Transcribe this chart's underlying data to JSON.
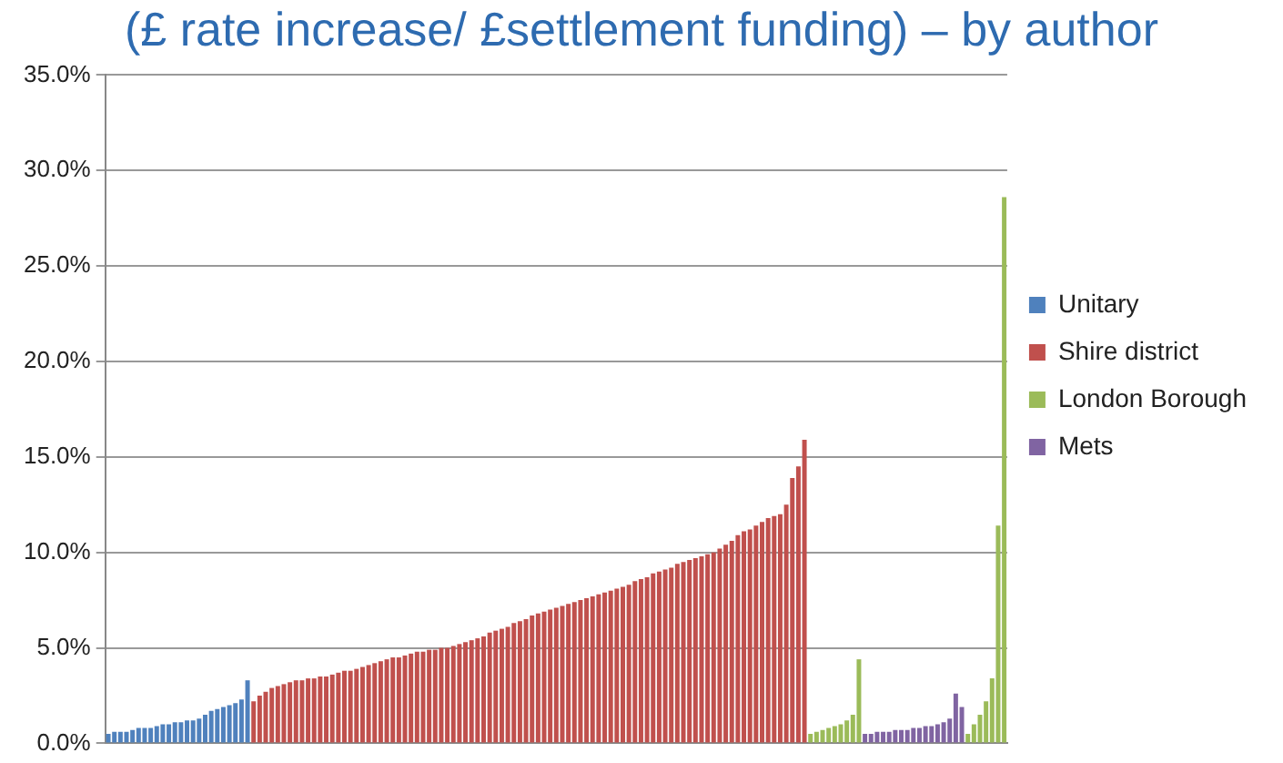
{
  "chart_data": {
    "type": "bar",
    "title": "(£ rate increase/ £settlement funding) – by author",
    "categories": [
      null,
      null,
      null,
      null,
      null,
      null,
      null,
      null,
      null,
      null,
      null,
      null,
      null,
      null,
      null,
      null,
      null,
      null,
      null,
      null,
      null,
      null,
      null,
      null,
      null,
      null,
      null,
      null,
      null,
      null,
      null,
      null,
      null,
      null,
      null,
      null,
      null,
      null,
      null,
      null,
      null,
      null,
      null,
      null,
      null,
      null,
      null,
      null,
      null,
      null,
      null,
      null,
      null,
      null,
      null,
      null,
      null,
      null,
      null,
      null,
      null,
      null,
      null,
      null,
      null,
      null,
      null,
      null,
      null,
      null,
      null,
      null,
      null,
      null,
      null,
      null,
      null,
      null,
      null,
      null,
      null,
      null,
      null,
      null,
      null,
      null,
      null,
      null,
      null,
      null,
      null,
      null,
      null,
      null,
      null,
      null,
      null,
      null,
      null,
      null,
      null,
      null,
      null,
      null,
      null,
      null,
      null,
      null,
      null,
      null,
      null,
      null,
      null,
      null,
      null,
      null,
      null,
      null,
      null,
      null,
      null,
      null,
      null,
      null,
      null,
      null,
      null,
      null,
      null,
      null,
      null,
      null,
      null,
      null,
      null,
      null,
      null,
      null,
      null,
      null,
      null,
      null,
      null,
      null,
      null,
      null,
      null,
      null,
      null
    ],
    "series": [
      {
        "name": "Unitary",
        "color": "#4f81bd",
        "values": [
          0.5,
          0.6,
          0.6,
          0.6,
          0.7,
          0.8,
          0.8,
          0.8,
          0.9,
          1.0,
          1.0,
          1.1,
          1.1,
          1.2,
          1.2,
          1.3,
          1.5,
          1.7,
          1.8,
          1.9,
          2.0,
          2.1,
          2.3,
          3.3,
          null,
          null,
          null,
          null,
          null,
          null,
          null,
          null,
          null,
          null,
          null,
          null,
          null,
          null,
          null,
          null,
          null,
          null,
          null,
          null,
          null,
          null,
          null,
          null,
          null,
          null,
          null,
          null,
          null,
          null,
          null,
          null,
          null,
          null,
          null,
          null,
          null,
          null,
          null,
          null,
          null,
          null,
          null,
          null,
          null,
          null,
          null,
          null,
          null,
          null,
          null,
          null,
          null,
          null,
          null,
          null,
          null,
          null,
          null,
          null,
          null,
          null,
          null,
          null,
          null,
          null,
          null,
          null,
          null,
          null,
          null,
          null,
          null,
          null,
          null,
          null,
          null,
          null,
          null,
          null,
          null,
          null,
          null,
          null,
          null,
          null,
          null,
          null,
          null,
          null,
          null,
          null,
          null,
          null,
          null,
          null,
          null,
          null,
          null,
          null,
          null,
          null,
          null,
          null,
          null,
          null,
          null,
          null,
          null,
          null,
          null,
          null,
          null,
          null,
          null,
          null,
          null,
          null,
          null,
          null,
          null,
          null,
          null,
          null,
          null
        ]
      },
      {
        "name": "Shire district",
        "color": "#c0504d",
        "values": [
          null,
          null,
          null,
          null,
          null,
          null,
          null,
          null,
          null,
          null,
          null,
          null,
          null,
          null,
          null,
          null,
          null,
          null,
          null,
          null,
          null,
          null,
          null,
          null,
          2.2,
          2.5,
          2.7,
          2.9,
          3.0,
          3.1,
          3.2,
          3.3,
          3.3,
          3.4,
          3.4,
          3.5,
          3.5,
          3.6,
          3.7,
          3.8,
          3.8,
          3.9,
          4.0,
          4.1,
          4.2,
          4.3,
          4.4,
          4.5,
          4.5,
          4.6,
          4.7,
          4.8,
          4.8,
          4.9,
          4.9,
          5.0,
          5.0,
          5.1,
          5.2,
          5.3,
          5.4,
          5.5,
          5.6,
          5.8,
          5.9,
          6.0,
          6.1,
          6.3,
          6.4,
          6.5,
          6.7,
          6.8,
          6.9,
          7.0,
          7.1,
          7.2,
          7.3,
          7.4,
          7.5,
          7.6,
          7.7,
          7.8,
          7.9,
          8.0,
          8.1,
          8.2,
          8.3,
          8.5,
          8.6,
          8.7,
          8.9,
          9.0,
          9.1,
          9.2,
          9.4,
          9.5,
          9.6,
          9.7,
          9.8,
          9.9,
          10.0,
          10.2,
          10.4,
          10.6,
          10.9,
          11.1,
          11.2,
          11.4,
          11.6,
          11.8,
          11.9,
          12.0,
          12.5,
          13.9,
          14.5,
          15.9,
          null,
          null,
          null,
          null,
          null,
          null,
          null,
          null,
          null,
          null,
          null,
          null,
          null,
          null,
          null,
          null,
          null,
          null,
          null,
          null,
          null,
          null,
          null,
          null,
          null,
          null,
          null,
          null,
          null,
          null,
          null,
          null,
          null
        ]
      },
      {
        "name": "London Borough",
        "color": "#9bbb59",
        "values": [
          null,
          null,
          null,
          null,
          null,
          null,
          null,
          null,
          null,
          null,
          null,
          null,
          null,
          null,
          null,
          null,
          null,
          null,
          null,
          null,
          null,
          null,
          null,
          null,
          null,
          null,
          null,
          null,
          null,
          null,
          null,
          null,
          null,
          null,
          null,
          null,
          null,
          null,
          null,
          null,
          null,
          null,
          null,
          null,
          null,
          null,
          null,
          null,
          null,
          null,
          null,
          null,
          null,
          null,
          null,
          null,
          null,
          null,
          null,
          null,
          null,
          null,
          null,
          null,
          null,
          null,
          null,
          null,
          null,
          null,
          null,
          null,
          null,
          null,
          null,
          null,
          null,
          null,
          null,
          null,
          null,
          null,
          null,
          null,
          null,
          null,
          null,
          null,
          null,
          null,
          null,
          null,
          null,
          null,
          null,
          null,
          null,
          null,
          null,
          null,
          null,
          null,
          null,
          null,
          null,
          null,
          null,
          null,
          null,
          null,
          null,
          null,
          null,
          null,
          null,
          null,
          0.5,
          0.6,
          0.7,
          0.8,
          0.9,
          1.0,
          1.2,
          1.5,
          4.4,
          null,
          null,
          null,
          null,
          null,
          null,
          null,
          null,
          null,
          null,
          null,
          null,
          null,
          null,
          null,
          null,
          null,
          0.5,
          1.0,
          1.5,
          2.2,
          3.4,
          11.4,
          28.6
        ]
      },
      {
        "name": "Mets",
        "color": "#8064a2",
        "values": [
          null,
          null,
          null,
          null,
          null,
          null,
          null,
          null,
          null,
          null,
          null,
          null,
          null,
          null,
          null,
          null,
          null,
          null,
          null,
          null,
          null,
          null,
          null,
          null,
          null,
          null,
          null,
          null,
          null,
          null,
          null,
          null,
          null,
          null,
          null,
          null,
          null,
          null,
          null,
          null,
          null,
          null,
          null,
          null,
          null,
          null,
          null,
          null,
          null,
          null,
          null,
          null,
          null,
          null,
          null,
          null,
          null,
          null,
          null,
          null,
          null,
          null,
          null,
          null,
          null,
          null,
          null,
          null,
          null,
          null,
          null,
          null,
          null,
          null,
          null,
          null,
          null,
          null,
          null,
          null,
          null,
          null,
          null,
          null,
          null,
          null,
          null,
          null,
          null,
          null,
          null,
          null,
          null,
          null,
          null,
          null,
          null,
          null,
          null,
          null,
          null,
          null,
          null,
          null,
          null,
          null,
          null,
          null,
          null,
          null,
          null,
          null,
          null,
          null,
          null,
          null,
          null,
          null,
          null,
          null,
          null,
          null,
          null,
          null,
          null,
          0.5,
          0.5,
          0.6,
          0.6,
          0.6,
          0.7,
          0.7,
          0.7,
          0.8,
          0.8,
          0.9,
          0.9,
          1.0,
          1.1,
          1.3,
          2.6,
          1.9,
          null,
          null,
          null,
          null,
          null,
          null,
          null
        ]
      }
    ],
    "ylim": [
      0,
      35
    ],
    "yticks": [
      {
        "value": 0,
        "label": "0.0%"
      },
      {
        "value": 5,
        "label": "5.0%"
      },
      {
        "value": 10,
        "label": "10.0%"
      },
      {
        "value": 15,
        "label": "15.0%"
      },
      {
        "value": 20,
        "label": "20.0%"
      },
      {
        "value": 25,
        "label": "25.0%"
      },
      {
        "value": 30,
        "label": "30.0%"
      },
      {
        "value": 35,
        "label": "35.0%"
      }
    ],
    "grid": "y",
    "legend": "right"
  }
}
